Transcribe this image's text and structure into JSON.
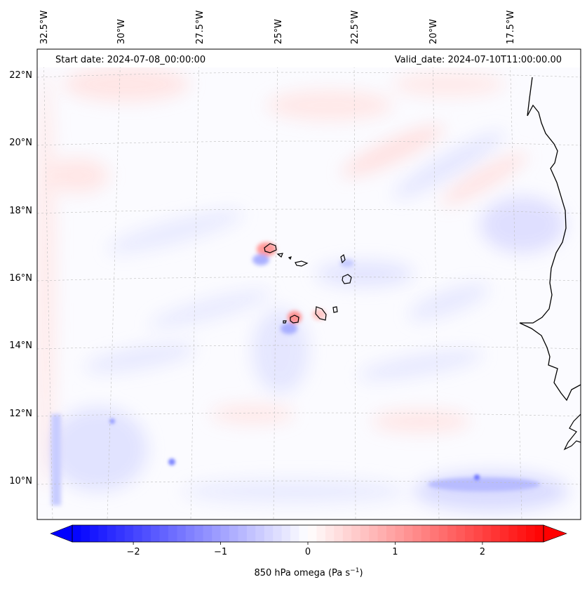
{
  "header": {
    "start_date": "Start date: 2024-07-08_00:00:00",
    "valid_date": "Valid_date: 2024-07-10T11:00:00.00"
  },
  "map": {
    "lon_labels": [
      "32.5°W",
      "30°W",
      "27.5°W",
      "25°W",
      "22.5°W",
      "20°W",
      "17.5°W"
    ],
    "lat_labels": [
      "22°N",
      "20°N",
      "18°N",
      "16°N",
      "14°N",
      "12°N",
      "10°N"
    ],
    "grid": "dashed graticule",
    "field": "850 hPa vertical velocity (omega)"
  },
  "colorbar": {
    "label": "850 hPa omega (Pa s",
    "label_exp": "−1",
    "label_close": ")",
    "ticks": [
      "−2",
      "−1",
      "0",
      "1",
      "2"
    ],
    "range": [
      -2.7,
      2.7
    ],
    "cmap": "bwr",
    "extend": "both"
  },
  "colors": {
    "negative": "#0000ff",
    "neutral": "#ffffff",
    "positive": "#ff0000",
    "coast": "#000000"
  }
}
